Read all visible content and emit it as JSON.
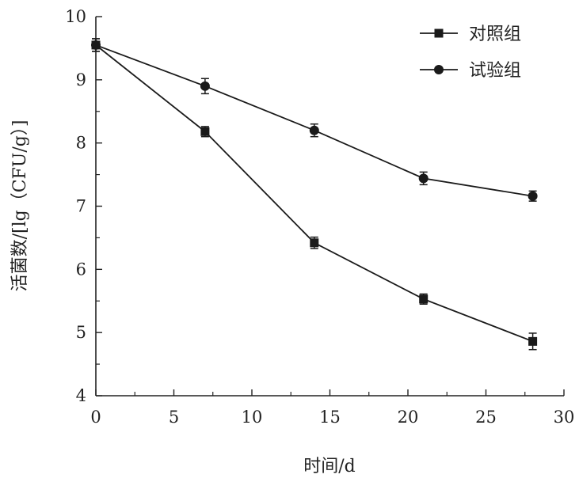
{
  "chart_data": {
    "type": "line",
    "title": "",
    "xlabel": "时间/d",
    "ylabel": "活菌数/[lg（CFU/g）]",
    "xlim": [
      0,
      30
    ],
    "ylim": [
      4,
      10
    ],
    "x_ticks": [
      0,
      5,
      10,
      15,
      20,
      25,
      30
    ],
    "y_ticks": [
      4,
      5,
      6,
      7,
      8,
      9,
      10
    ],
    "x_tick_labels": [
      "0",
      "5",
      "10",
      "15",
      "20",
      "25",
      "30"
    ],
    "y_tick_labels": [
      "4",
      "5",
      "6",
      "7",
      "8",
      "9",
      "10"
    ],
    "grid": false,
    "legend_position": "top-right",
    "series": [
      {
        "name": "对照组",
        "marker": "square",
        "color": "#1a1a1a",
        "x": [
          0,
          7,
          14,
          21,
          28
        ],
        "y": [
          9.55,
          8.18,
          6.42,
          5.53,
          4.86
        ],
        "error": [
          0.1,
          0.08,
          0.09,
          0.08,
          0.13
        ]
      },
      {
        "name": "试验组",
        "marker": "circle",
        "color": "#1a1a1a",
        "x": [
          0,
          7,
          14,
          21,
          28
        ],
        "y": [
          9.55,
          8.9,
          8.2,
          7.44,
          7.16
        ],
        "error": [
          0.1,
          0.12,
          0.1,
          0.1,
          0.08
        ]
      }
    ]
  }
}
